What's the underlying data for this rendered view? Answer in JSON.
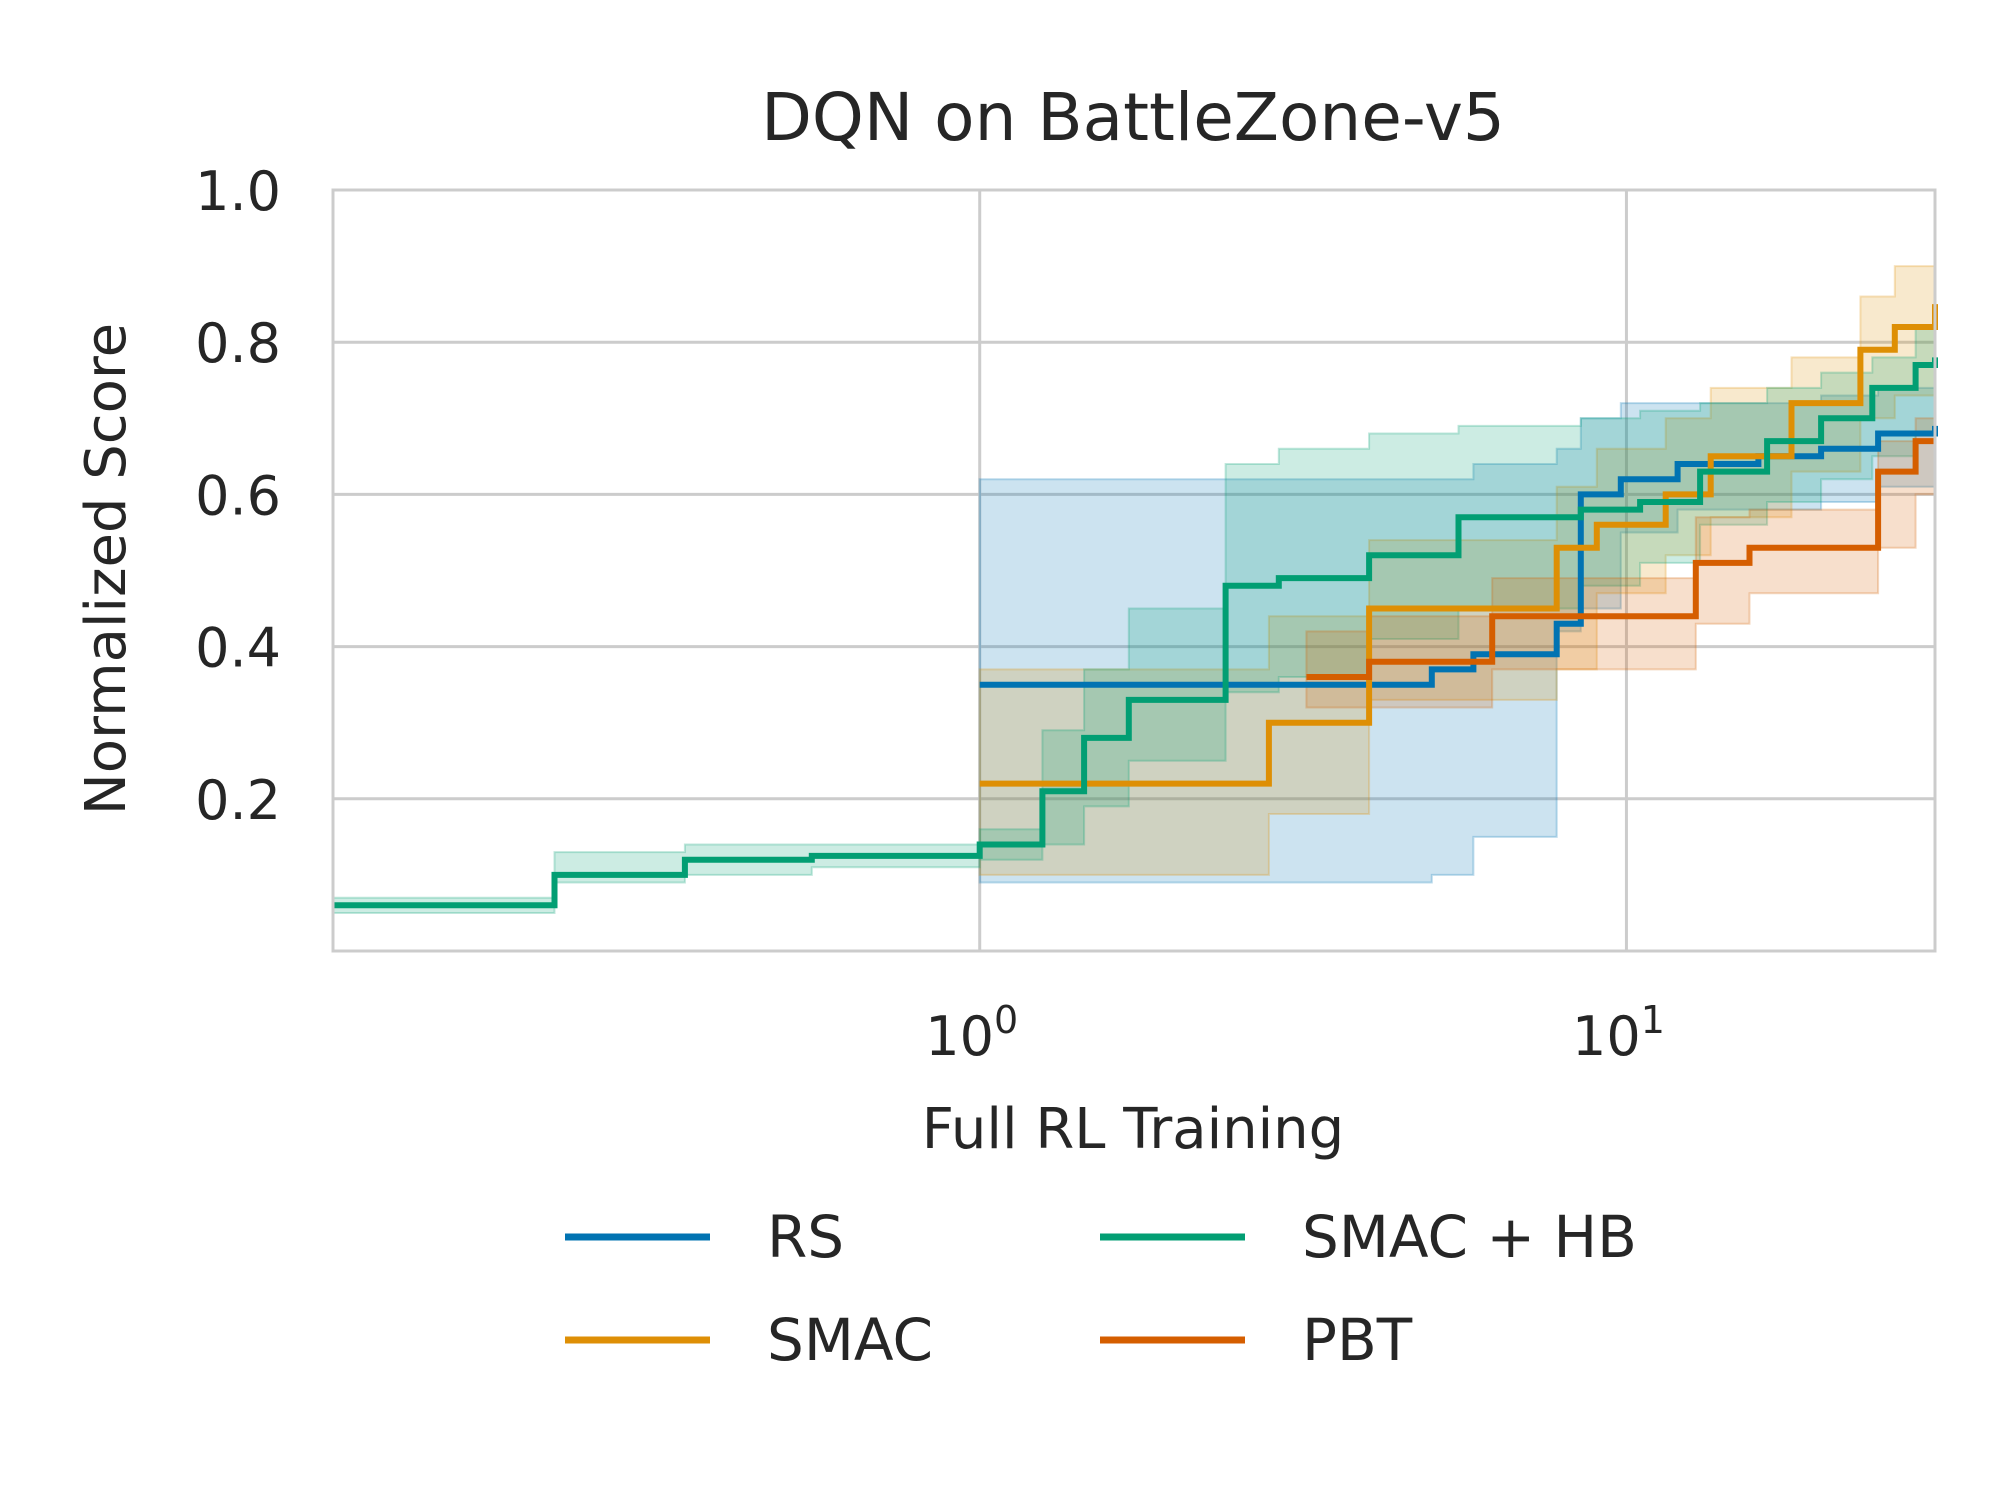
{
  "chart_data": {
    "type": "line",
    "title": "DQN on BattleZone-v5",
    "xlabel": "Full RL Training",
    "ylabel": "Normalized Score",
    "x_scale": "log",
    "xlim": [
      0.1,
      30
    ],
    "ylim": [
      0.0,
      1.0
    ],
    "grid": true,
    "y_ticks": [
      "0.2",
      "0.4",
      "0.6",
      "0.8",
      "1.0"
    ],
    "y_tick_values": [
      0.2,
      0.4,
      0.6,
      0.8,
      1.0
    ],
    "x_ticks": [
      {
        "value": 1,
        "base": "10",
        "exp": "0"
      },
      {
        "value": 10,
        "base": "10",
        "exp": "1"
      }
    ],
    "legend": {
      "position": "bottom",
      "columns": 2
    },
    "series": [
      {
        "name": "RS",
        "color": "#0173b2",
        "x": [
          1.0,
          5.0,
          5.8,
          7.8,
          8.5,
          9.8,
          12.0,
          16.0,
          20.0,
          24.5,
          30.0
        ],
        "y": [
          0.35,
          0.37,
          0.39,
          0.43,
          0.6,
          0.62,
          0.64,
          0.65,
          0.66,
          0.68,
          0.69
        ],
        "band_low": [
          0.09,
          0.1,
          0.15,
          0.42,
          0.45,
          0.55,
          0.58,
          0.58,
          0.59,
          0.61,
          0.62
        ],
        "band_high": [
          0.62,
          0.62,
          0.64,
          0.66,
          0.7,
          0.72,
          0.72,
          0.72,
          0.73,
          0.74,
          0.75
        ]
      },
      {
        "name": "SMAC",
        "color": "#de8f05",
        "x": [
          1.0,
          2.8,
          4.0,
          7.8,
          9.0,
          11.5,
          13.5,
          18.0,
          23.0,
          26.0,
          30.0
        ],
        "y": [
          0.22,
          0.3,
          0.45,
          0.53,
          0.56,
          0.6,
          0.65,
          0.72,
          0.79,
          0.82,
          0.85
        ],
        "band_low": [
          0.1,
          0.18,
          0.33,
          0.37,
          0.47,
          0.52,
          0.57,
          0.63,
          0.7,
          0.73,
          0.76
        ],
        "band_high": [
          0.37,
          0.44,
          0.54,
          0.61,
          0.66,
          0.7,
          0.74,
          0.78,
          0.86,
          0.9,
          0.92
        ]
      },
      {
        "name": "SMAC + HB",
        "color": "#029e73",
        "x": [
          0.1,
          0.22,
          0.35,
          0.55,
          1.0,
          1.25,
          1.45,
          1.7,
          2.4,
          2.9,
          4.0,
          5.5,
          8.5,
          10.5,
          13.0,
          16.5,
          20.0,
          24.0,
          28.0,
          30.0
        ],
        "y": [
          0.06,
          0.1,
          0.12,
          0.125,
          0.14,
          0.21,
          0.28,
          0.33,
          0.48,
          0.49,
          0.52,
          0.57,
          0.58,
          0.59,
          0.63,
          0.67,
          0.7,
          0.74,
          0.77,
          0.78
        ],
        "band_low": [
          0.05,
          0.09,
          0.1,
          0.11,
          0.12,
          0.14,
          0.19,
          0.25,
          0.34,
          0.36,
          0.41,
          0.45,
          0.48,
          0.51,
          0.56,
          0.59,
          0.62,
          0.65,
          0.68,
          0.7
        ],
        "band_high": [
          0.07,
          0.13,
          0.14,
          0.14,
          0.16,
          0.29,
          0.37,
          0.45,
          0.64,
          0.66,
          0.68,
          0.69,
          0.7,
          0.71,
          0.72,
          0.74,
          0.76,
          0.78,
          0.82,
          0.84
        ]
      },
      {
        "name": "PBT",
        "color": "#d55e00",
        "x": [
          3.2,
          4.0,
          6.2,
          12.8,
          15.5,
          24.5,
          28.0,
          30.0
        ],
        "y": [
          0.36,
          0.38,
          0.44,
          0.51,
          0.53,
          0.63,
          0.67,
          0.67
        ],
        "band_low": [
          0.32,
          0.32,
          0.37,
          0.43,
          0.47,
          0.53,
          0.6,
          0.61
        ],
        "band_high": [
          0.42,
          0.44,
          0.49,
          0.57,
          0.58,
          0.67,
          0.7,
          0.7
        ]
      }
    ]
  }
}
